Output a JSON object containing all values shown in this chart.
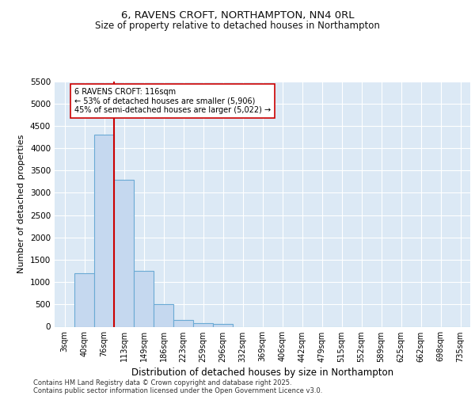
{
  "title_line1": "6, RAVENS CROFT, NORTHAMPTON, NN4 0RL",
  "title_line2": "Size of property relative to detached houses in Northampton",
  "xlabel": "Distribution of detached houses by size in Northampton",
  "ylabel": "Number of detached properties",
  "categories": [
    "3sqm",
    "40sqm",
    "76sqm",
    "113sqm",
    "149sqm",
    "186sqm",
    "223sqm",
    "259sqm",
    "296sqm",
    "332sqm",
    "369sqm",
    "406sqm",
    "442sqm",
    "479sqm",
    "515sqm",
    "552sqm",
    "589sqm",
    "625sqm",
    "662sqm",
    "698sqm",
    "735sqm"
  ],
  "values": [
    0,
    1200,
    4300,
    3300,
    1250,
    500,
    150,
    80,
    60,
    0,
    0,
    0,
    0,
    0,
    0,
    0,
    0,
    0,
    0,
    0,
    0
  ],
  "bar_color": "#c5d8ef",
  "bar_edge_color": "#6aaad4",
  "vline_color": "#cc0000",
  "annotation_text": "6 RAVENS CROFT: 116sqm\n← 53% of detached houses are smaller (5,906)\n45% of semi-detached houses are larger (5,022) →",
  "annotation_box_color": "#ffffff",
  "annotation_box_edge": "#cc0000",
  "ylim_max": 5500,
  "yticks": [
    0,
    500,
    1000,
    1500,
    2000,
    2500,
    3000,
    3500,
    4000,
    4500,
    5000,
    5500
  ],
  "background_color": "#dce9f5",
  "grid_color": "#ffffff",
  "footer_line1": "Contains HM Land Registry data © Crown copyright and database right 2025.",
  "footer_line2": "Contains public sector information licensed under the Open Government Licence v3.0."
}
